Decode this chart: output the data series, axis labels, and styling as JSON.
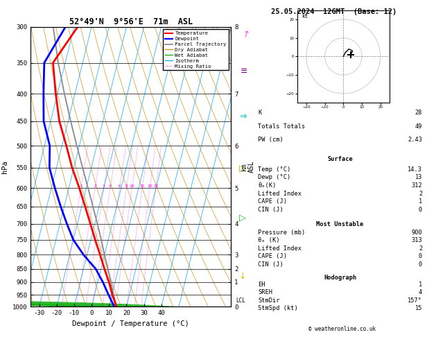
{
  "title_left": "52°49'N  9°56'E  71m  ASL",
  "title_right": "25.05.2024  12GMT  (Base: 12)",
  "xlabel": "Dewpoint / Temperature (°C)",
  "ylabel_left": "hPa",
  "sounding_temp": [
    14.3,
    10.2,
    6.5,
    2.0,
    -2.5,
    -7.5,
    -12.5,
    -18.0,
    -24.0,
    -31.0,
    -37.5,
    -45.0,
    -51.0,
    -57.0,
    -48.0
  ],
  "sounding_dewp": [
    13.0,
    8.0,
    3.0,
    -3.0,
    -12.0,
    -20.0,
    -26.0,
    -32.0,
    -38.0,
    -44.0,
    -47.0,
    -54.0,
    -58.0,
    -62.0,
    -55.0
  ],
  "sounding_pres": [
    1000,
    950,
    900,
    850,
    800,
    750,
    700,
    650,
    600,
    550,
    500,
    450,
    400,
    350,
    300
  ],
  "parcel_temp": [
    14.3,
    10.9,
    7.5,
    4.0,
    0.0,
    -4.0,
    -8.5,
    -13.5,
    -19.0,
    -25.0,
    -31.5,
    -38.5,
    -46.0,
    -54.0,
    -62.0
  ],
  "parcel_pres": [
    1000,
    950,
    900,
    850,
    800,
    750,
    700,
    650,
    600,
    550,
    500,
    450,
    400,
    350,
    300
  ],
  "temp_color": "#ff0000",
  "dewp_color": "#0000ff",
  "parcel_color": "#888888",
  "dry_adiabat_color": "#cc8800",
  "wet_adiabat_color": "#00aa00",
  "isotherm_color": "#00aaff",
  "mixing_ratio_color": "#ff00ff",
  "info_panel": {
    "K": 28,
    "Totals_Totals": 49,
    "PW_cm": "2.43",
    "Surface_Temp": "14.3",
    "Surface_Dewp": "13",
    "Surface_theta_e": "312",
    "Lifted_Index": "2",
    "CAPE": "1",
    "CIN": "0",
    "MU_Pressure": "900",
    "MU_theta_e": "313",
    "MU_Lifted_Index": "2",
    "MU_CAPE": "0",
    "MU_CIN": "0",
    "EH": "1",
    "SREH": "4",
    "StmDir": "157°",
    "StmSpd": "15"
  },
  "mixing_ratio_lines": [
    1,
    2,
    3,
    4,
    6,
    8,
    10,
    15,
    20,
    25
  ],
  "pressure_levels": [
    300,
    350,
    400,
    450,
    500,
    550,
    600,
    650,
    700,
    750,
    800,
    850,
    900,
    950,
    1000
  ],
  "km_levels_p": [
    300,
    400,
    500,
    600,
    700,
    800,
    850,
    900,
    1000
  ],
  "km_levels_v": [
    8,
    7,
    6,
    5,
    4,
    3,
    2,
    1,
    0
  ],
  "lcl_pressure": 975,
  "temp_min": -35,
  "temp_max": 40,
  "skew": 40,
  "hodo_u": [
    0,
    1,
    3,
    5,
    4
  ],
  "hodo_v": [
    0,
    2,
    4,
    3,
    1
  ],
  "wind_barb_colors": [
    "#ff00ff",
    "#880088",
    "#00cccc",
    "#aaaa00",
    "#00cc00",
    "#cccc00"
  ]
}
